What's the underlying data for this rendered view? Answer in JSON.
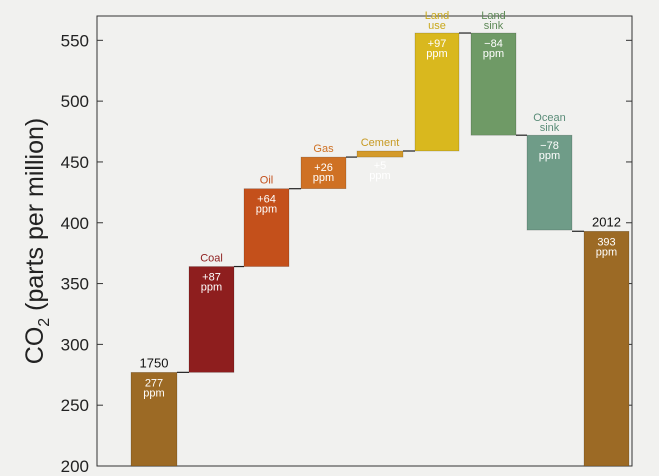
{
  "chart_data": {
    "type": "bar",
    "subtype": "waterfall",
    "ylabel": "CO₂ (parts per million)",
    "ylabel_main": "CO",
    "ylabel_sub": "2",
    "ylabel_rest": " (parts per million)",
    "ylim": [
      200,
      570
    ],
    "yticks": [
      "200",
      "250",
      "300",
      "350",
      "400",
      "450",
      "500",
      "550"
    ],
    "grid": false,
    "bars": [
      {
        "label": "1750",
        "base": 200,
        "top": 277,
        "value_lines": [
          "277",
          "ppm"
        ],
        "color": "#9c6a25",
        "label_color": "#111111",
        "kind": "total"
      },
      {
        "label": "Coal",
        "base": 277,
        "top": 364,
        "value_lines": [
          "+87",
          "ppm"
        ],
        "color": "#8e1e1e",
        "label_color": "#8e1e1e",
        "kind": "change"
      },
      {
        "label": "Oil",
        "base": 364,
        "top": 428,
        "value_lines": [
          "+64",
          "ppm"
        ],
        "color": "#c4501b",
        "label_color": "#c4501b",
        "kind": "change"
      },
      {
        "label": "Gas",
        "base": 428,
        "top": 454,
        "value_lines": [
          "+26",
          "ppm"
        ],
        "color": "#cf7124",
        "label_color": "#cf7124",
        "kind": "change"
      },
      {
        "label": "Cement",
        "base": 454,
        "top": 459,
        "value_lines": [
          "+5",
          "ppm"
        ],
        "color": "#d49a2a",
        "label_color": "#c79a22",
        "kind": "change"
      },
      {
        "label_lines": [
          "Land",
          "use"
        ],
        "base": 459,
        "top": 556,
        "value_lines": [
          "+97",
          "ppm"
        ],
        "color": "#d9b81e",
        "label_color": "#c9a81a",
        "kind": "change"
      },
      {
        "label_lines": [
          "Land",
          "sink"
        ],
        "base": 472,
        "top": 556,
        "value_lines": [
          "−84",
          "ppm"
        ],
        "color": "#6f9a66",
        "label_color": "#5f8a58",
        "kind": "change"
      },
      {
        "label_lines": [
          "Ocean",
          "sink"
        ],
        "base": 394,
        "top": 472,
        "value_lines": [
          "−78",
          "ppm"
        ],
        "color": "#6f9c88",
        "label_color": "#5a8c78",
        "kind": "change"
      },
      {
        "label": "2012",
        "base": 200,
        "top": 393,
        "value_lines": [
          "393",
          "ppm"
        ],
        "color": "#9c6a25",
        "label_color": "#111111",
        "kind": "total"
      }
    ]
  }
}
